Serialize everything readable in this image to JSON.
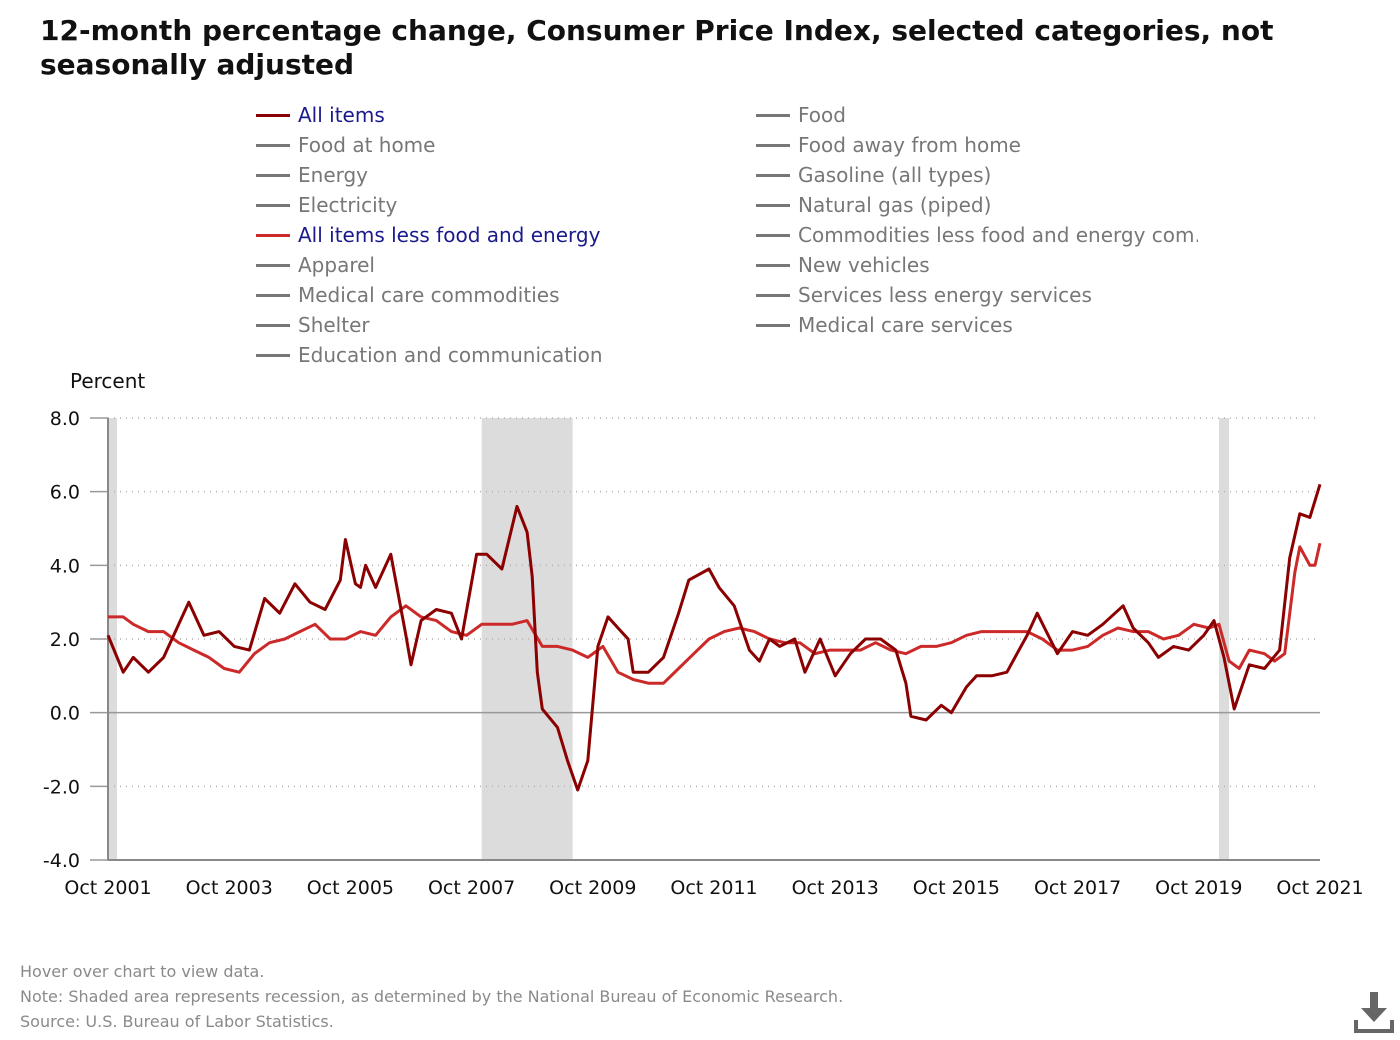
{
  "title": "12-month percentage change, Consumer Price Index, selected categories, not seasonally adjusted",
  "legend": [
    {
      "label": "All items",
      "color": "#8b0000",
      "active": true
    },
    {
      "label": "Food",
      "color": "#777777",
      "active": false
    },
    {
      "label": "Food at home",
      "color": "#777777",
      "active": false
    },
    {
      "label": "Food away from home",
      "color": "#777777",
      "active": false
    },
    {
      "label": "Energy",
      "color": "#777777",
      "active": false
    },
    {
      "label": "Gasoline (all types)",
      "color": "#777777",
      "active": false
    },
    {
      "label": "Electricity",
      "color": "#777777",
      "active": false
    },
    {
      "label": "Natural gas (piped)",
      "color": "#777777",
      "active": false
    },
    {
      "label": "All items less food and energy",
      "color": "#cc2929",
      "active": true
    },
    {
      "label": "Commodities less food and energy com…",
      "color": "#777777",
      "active": false
    },
    {
      "label": "Apparel",
      "color": "#777777",
      "active": false
    },
    {
      "label": "New vehicles",
      "color": "#777777",
      "active": false
    },
    {
      "label": "Medical care commodities",
      "color": "#777777",
      "active": false
    },
    {
      "label": "Services less energy services",
      "color": "#777777",
      "active": false
    },
    {
      "label": "Shelter",
      "color": "#777777",
      "active": false
    },
    {
      "label": "Medical care services",
      "color": "#777777",
      "active": false
    },
    {
      "label": "Education and communication",
      "color": "#777777",
      "active": false
    }
  ],
  "footnotes": {
    "hover": "Hover over chart to view data.",
    "note": "Note: Shaded area represents recession, as determined by the National Bureau of Economic Research.",
    "source": "Source: U.S. Bureau of Labor Statistics."
  },
  "download_icon": "download-icon",
  "chart_data": {
    "type": "line",
    "title": "12-month percentage change, Consumer Price Index, selected categories, not seasonally adjusted",
    "ylabel": "Percent",
    "xlabel": "",
    "ylim": [
      -4.0,
      8.0
    ],
    "yticks": [
      "8.0",
      "6.0",
      "4.0",
      "2.0",
      "0.0",
      "-2.0",
      "-4.0"
    ],
    "xlim": [
      "2001-10",
      "2021-10"
    ],
    "xticks": [
      "Oct 2001",
      "Oct 2003",
      "Oct 2005",
      "Oct 2007",
      "Oct 2009",
      "Oct 2011",
      "Oct 2013",
      "Oct 2015",
      "Oct 2017",
      "Oct 2019",
      "Oct 2021"
    ],
    "grid": "horizontal dotted",
    "legend_position": "top",
    "recessions": [
      {
        "start": "2001-10",
        "end": "2001-11"
      },
      {
        "start": "2007-12",
        "end": "2009-06"
      },
      {
        "start": "2020-02",
        "end": "2020-04"
      }
    ],
    "series": [
      {
        "name": "All items",
        "color": "#8b0000",
        "points": [
          [
            "2001-10",
            2.1
          ],
          [
            "2002-01",
            1.1
          ],
          [
            "2002-03",
            1.5
          ],
          [
            "2002-06",
            1.1
          ],
          [
            "2002-09",
            1.5
          ],
          [
            "2002-12",
            2.4
          ],
          [
            "2003-02",
            3.0
          ],
          [
            "2003-05",
            2.1
          ],
          [
            "2003-08",
            2.2
          ],
          [
            "2003-11",
            1.8
          ],
          [
            "2004-02",
            1.7
          ],
          [
            "2004-05",
            3.1
          ],
          [
            "2004-08",
            2.7
          ],
          [
            "2004-11",
            3.5
          ],
          [
            "2005-02",
            3.0
          ],
          [
            "2005-05",
            2.8
          ],
          [
            "2005-08",
            3.6
          ],
          [
            "2005-09",
            4.7
          ],
          [
            "2005-11",
            3.5
          ],
          [
            "2005-12",
            3.4
          ],
          [
            "2006-01",
            4.0
          ],
          [
            "2006-03",
            3.4
          ],
          [
            "2006-06",
            4.3
          ],
          [
            "2006-09",
            2.1
          ],
          [
            "2006-10",
            1.3
          ],
          [
            "2006-12",
            2.5
          ],
          [
            "2007-03",
            2.8
          ],
          [
            "2007-06",
            2.7
          ],
          [
            "2007-08",
            2.0
          ],
          [
            "2007-11",
            4.3
          ],
          [
            "2008-01",
            4.3
          ],
          [
            "2008-04",
            3.9
          ],
          [
            "2008-07",
            5.6
          ],
          [
            "2008-09",
            4.9
          ],
          [
            "2008-10",
            3.7
          ],
          [
            "2008-11",
            1.1
          ],
          [
            "2008-12",
            0.1
          ],
          [
            "2009-03",
            -0.4
          ],
          [
            "2009-05",
            -1.3
          ],
          [
            "2009-07",
            -2.1
          ],
          [
            "2009-09",
            -1.3
          ],
          [
            "2009-11",
            1.8
          ],
          [
            "2010-01",
            2.6
          ],
          [
            "2010-03",
            2.3
          ],
          [
            "2010-05",
            2.0
          ],
          [
            "2010-06",
            1.1
          ],
          [
            "2010-09",
            1.1
          ],
          [
            "2010-12",
            1.5
          ],
          [
            "2011-03",
            2.7
          ],
          [
            "2011-05",
            3.6
          ],
          [
            "2011-09",
            3.9
          ],
          [
            "2011-11",
            3.4
          ],
          [
            "2012-02",
            2.9
          ],
          [
            "2012-05",
            1.7
          ],
          [
            "2012-07",
            1.4
          ],
          [
            "2012-09",
            2.0
          ],
          [
            "2012-11",
            1.8
          ],
          [
            "2013-02",
            2.0
          ],
          [
            "2013-04",
            1.1
          ],
          [
            "2013-07",
            2.0
          ],
          [
            "2013-10",
            1.0
          ],
          [
            "2014-01",
            1.6
          ],
          [
            "2014-04",
            2.0
          ],
          [
            "2014-07",
            2.0
          ],
          [
            "2014-10",
            1.7
          ],
          [
            "2014-12",
            0.8
          ],
          [
            "2015-01",
            -0.1
          ],
          [
            "2015-04",
            -0.2
          ],
          [
            "2015-07",
            0.2
          ],
          [
            "2015-09",
            0.0
          ],
          [
            "2015-12",
            0.7
          ],
          [
            "2016-02",
            1.0
          ],
          [
            "2016-05",
            1.0
          ],
          [
            "2016-08",
            1.1
          ],
          [
            "2016-10",
            1.6
          ],
          [
            "2016-12",
            2.1
          ],
          [
            "2017-02",
            2.7
          ],
          [
            "2017-06",
            1.6
          ],
          [
            "2017-09",
            2.2
          ],
          [
            "2017-12",
            2.1
          ],
          [
            "2018-03",
            2.4
          ],
          [
            "2018-07",
            2.9
          ],
          [
            "2018-09",
            2.3
          ],
          [
            "2018-12",
            1.9
          ],
          [
            "2019-02",
            1.5
          ],
          [
            "2019-05",
            1.8
          ],
          [
            "2019-08",
            1.7
          ],
          [
            "2019-11",
            2.1
          ],
          [
            "2020-01",
            2.5
          ],
          [
            "2020-03",
            1.5
          ],
          [
            "2020-05",
            0.1
          ],
          [
            "2020-08",
            1.3
          ],
          [
            "2020-11",
            1.2
          ],
          [
            "2021-02",
            1.7
          ],
          [
            "2021-04",
            4.2
          ],
          [
            "2021-06",
            5.4
          ],
          [
            "2021-08",
            5.3
          ],
          [
            "2021-10",
            6.2
          ]
        ]
      },
      {
        "name": "All items less food and energy",
        "color": "#cc2929",
        "points": [
          [
            "2001-10",
            2.6
          ],
          [
            "2002-01",
            2.6
          ],
          [
            "2002-03",
            2.4
          ],
          [
            "2002-06",
            2.2
          ],
          [
            "2002-09",
            2.2
          ],
          [
            "2002-12",
            1.9
          ],
          [
            "2003-03",
            1.7
          ],
          [
            "2003-06",
            1.5
          ],
          [
            "2003-09",
            1.2
          ],
          [
            "2003-12",
            1.1
          ],
          [
            "2004-03",
            1.6
          ],
          [
            "2004-06",
            1.9
          ],
          [
            "2004-09",
            2.0
          ],
          [
            "2004-12",
            2.2
          ],
          [
            "2005-03",
            2.4
          ],
          [
            "2005-06",
            2.0
          ],
          [
            "2005-09",
            2.0
          ],
          [
            "2005-12",
            2.2
          ],
          [
            "2006-03",
            2.1
          ],
          [
            "2006-06",
            2.6
          ],
          [
            "2006-09",
            2.9
          ],
          [
            "2006-12",
            2.6
          ],
          [
            "2007-03",
            2.5
          ],
          [
            "2007-06",
            2.2
          ],
          [
            "2007-09",
            2.1
          ],
          [
            "2007-12",
            2.4
          ],
          [
            "2008-03",
            2.4
          ],
          [
            "2008-06",
            2.4
          ],
          [
            "2008-09",
            2.5
          ],
          [
            "2008-12",
            1.8
          ],
          [
            "2009-03",
            1.8
          ],
          [
            "2009-06",
            1.7
          ],
          [
            "2009-09",
            1.5
          ],
          [
            "2009-12",
            1.8
          ],
          [
            "2010-03",
            1.1
          ],
          [
            "2010-06",
            0.9
          ],
          [
            "2010-09",
            0.8
          ],
          [
            "2010-12",
            0.8
          ],
          [
            "2011-03",
            1.2
          ],
          [
            "2011-06",
            1.6
          ],
          [
            "2011-09",
            2.0
          ],
          [
            "2011-12",
            2.2
          ],
          [
            "2012-03",
            2.3
          ],
          [
            "2012-06",
            2.2
          ],
          [
            "2012-09",
            2.0
          ],
          [
            "2012-12",
            1.9
          ],
          [
            "2013-03",
            1.9
          ],
          [
            "2013-06",
            1.6
          ],
          [
            "2013-09",
            1.7
          ],
          [
            "2013-12",
            1.7
          ],
          [
            "2014-03",
            1.7
          ],
          [
            "2014-06",
            1.9
          ],
          [
            "2014-09",
            1.7
          ],
          [
            "2014-12",
            1.6
          ],
          [
            "2015-03",
            1.8
          ],
          [
            "2015-06",
            1.8
          ],
          [
            "2015-09",
            1.9
          ],
          [
            "2015-12",
            2.1
          ],
          [
            "2016-03",
            2.2
          ],
          [
            "2016-06",
            2.2
          ],
          [
            "2016-09",
            2.2
          ],
          [
            "2016-12",
            2.2
          ],
          [
            "2017-03",
            2.0
          ],
          [
            "2017-06",
            1.7
          ],
          [
            "2017-09",
            1.7
          ],
          [
            "2017-12",
            1.8
          ],
          [
            "2018-03",
            2.1
          ],
          [
            "2018-06",
            2.3
          ],
          [
            "2018-09",
            2.2
          ],
          [
            "2018-12",
            2.2
          ],
          [
            "2019-03",
            2.0
          ],
          [
            "2019-06",
            2.1
          ],
          [
            "2019-09",
            2.4
          ],
          [
            "2019-12",
            2.3
          ],
          [
            "2020-02",
            2.4
          ],
          [
            "2020-04",
            1.4
          ],
          [
            "2020-06",
            1.2
          ],
          [
            "2020-08",
            1.7
          ],
          [
            "2020-11",
            1.6
          ],
          [
            "2021-01",
            1.4
          ],
          [
            "2021-03",
            1.6
          ],
          [
            "2021-05",
            3.8
          ],
          [
            "2021-06",
            4.5
          ],
          [
            "2021-08",
            4.0
          ],
          [
            "2021-09",
            4.0
          ],
          [
            "2021-10",
            4.6
          ]
        ]
      }
    ]
  }
}
